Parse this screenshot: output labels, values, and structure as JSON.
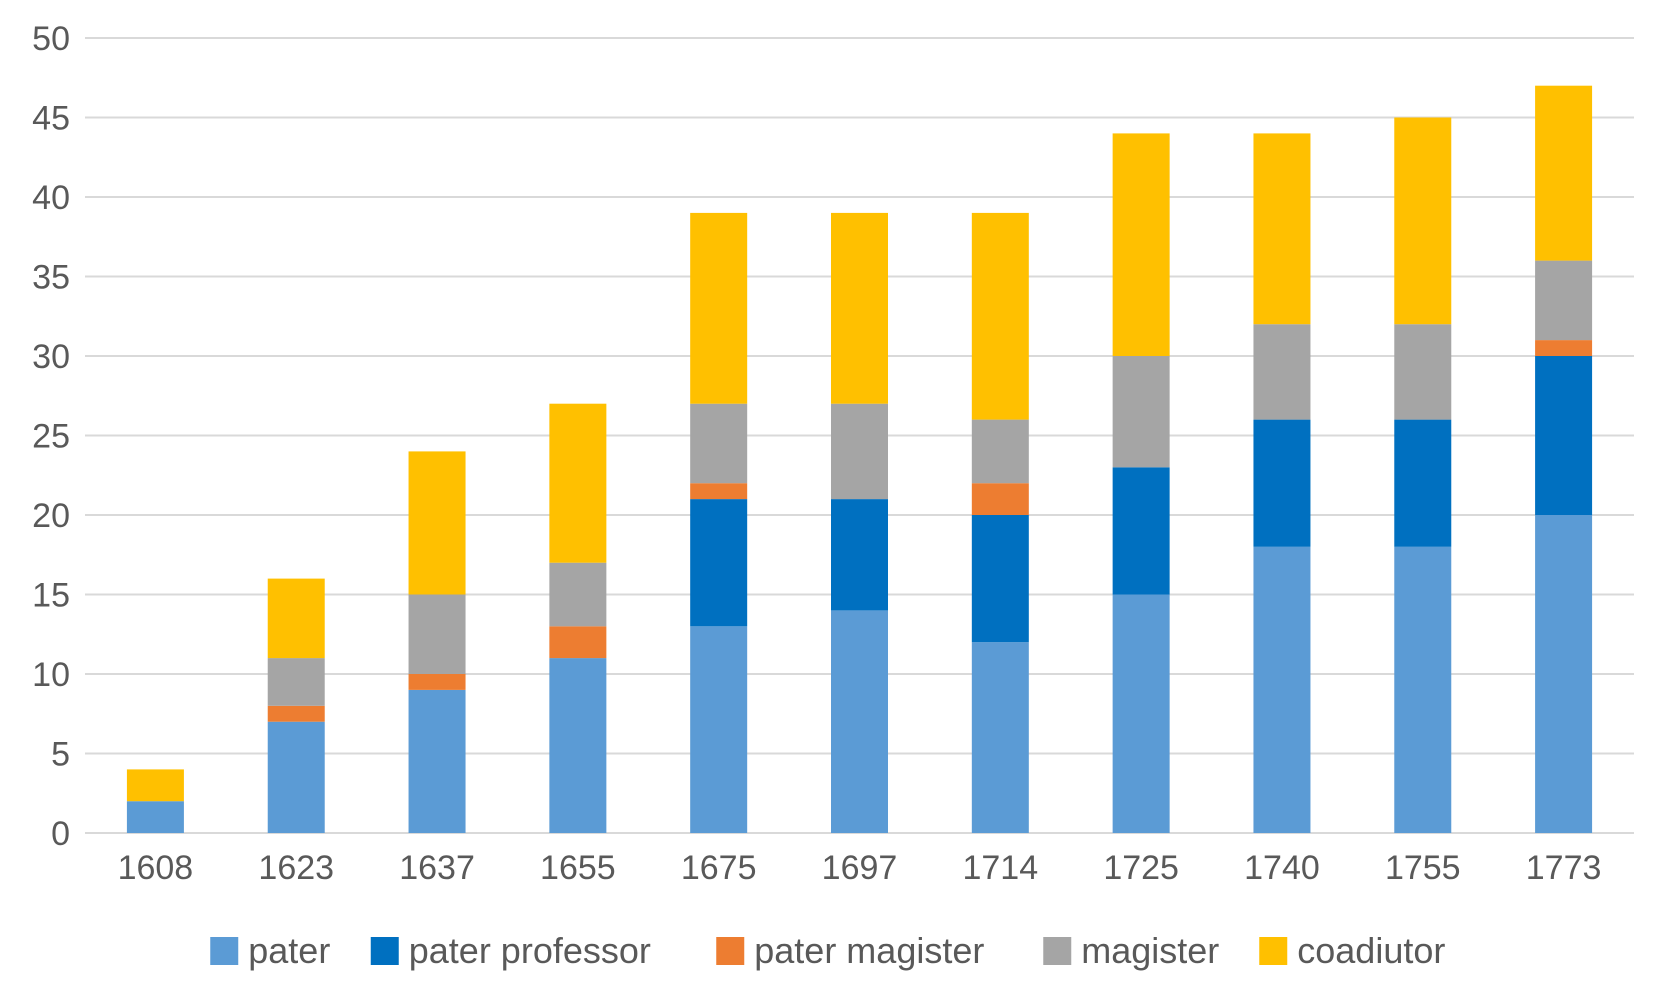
{
  "chart_data": {
    "type": "bar",
    "stacked": true,
    "title": "",
    "xlabel": "",
    "ylabel": "",
    "ylim": [
      0,
      50
    ],
    "yticks": [
      0,
      5,
      10,
      15,
      20,
      25,
      30,
      35,
      40,
      45,
      50
    ],
    "grid": true,
    "legend_position": "bottom",
    "categories": [
      "1608",
      "1623",
      "1637",
      "1655",
      "1675",
      "1697",
      "1714",
      "1725",
      "1740",
      "1755",
      "1773"
    ],
    "series": [
      {
        "name": "pater",
        "color": "#5B9BD5",
        "values": [
          2,
          7,
          9,
          11,
          13,
          14,
          12,
          15,
          18,
          18,
          20
        ]
      },
      {
        "name": "pater professor",
        "color": "#0070C0",
        "values": [
          0,
          0,
          0,
          0,
          8,
          7,
          8,
          8,
          8,
          8,
          10
        ]
      },
      {
        "name": "pater magister",
        "color": "#ED7D31",
        "values": [
          0,
          1,
          1,
          2,
          1,
          0,
          2,
          0,
          0,
          0,
          1
        ]
      },
      {
        "name": "magister",
        "color": "#A5A5A5",
        "values": [
          0,
          3,
          5,
          4,
          5,
          6,
          4,
          7,
          6,
          6,
          5
        ]
      },
      {
        "name": "coadiutor",
        "color": "#FFC000",
        "values": [
          2,
          5,
          9,
          10,
          12,
          12,
          13,
          14,
          12,
          13,
          11
        ]
      }
    ]
  }
}
